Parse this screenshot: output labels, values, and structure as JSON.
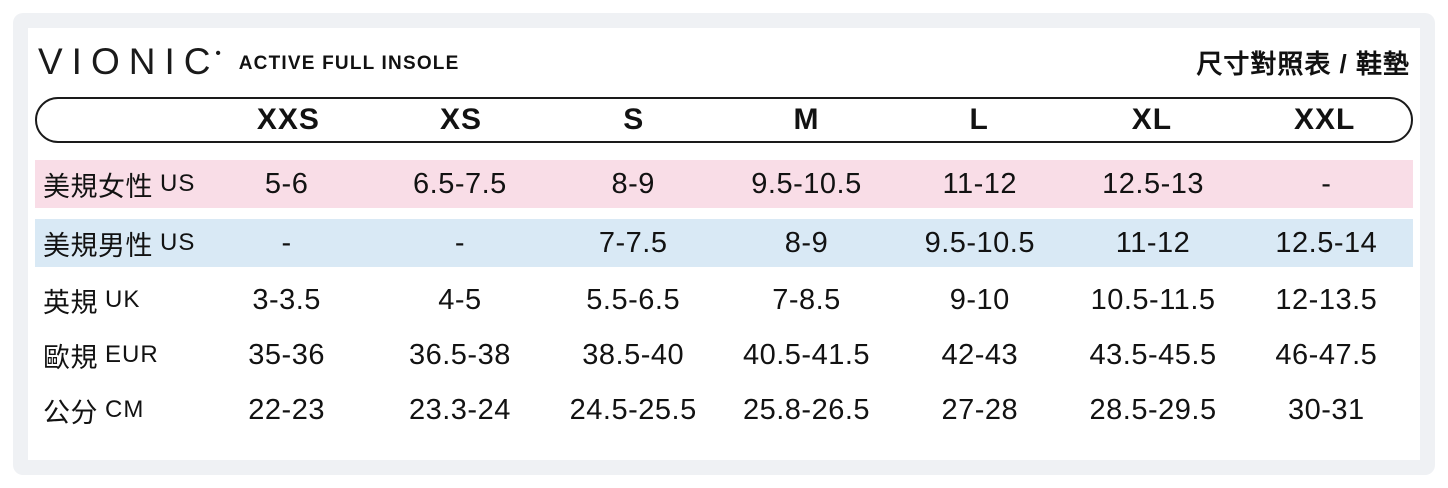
{
  "colors": {
    "frame": "#eff1f4",
    "pill_border": "#1a1a1a",
    "text": "#121212",
    "row_women_bg": "#f9dde7",
    "row_men_bg": "#d9e9f5"
  },
  "header": {
    "brand": "VIONIC",
    "brand_mark": "•",
    "product": "ACTIVE FULL INSOLE",
    "title_right": "尺寸對照表 / 鞋墊"
  },
  "table": {
    "sizes": [
      "XXS",
      "XS",
      "S",
      "M",
      "L",
      "XL",
      "XXL"
    ],
    "rows": [
      {
        "label_zh": "美規女性",
        "label_en": "US",
        "bg": "#f9dde7",
        "values": [
          "5-6",
          "6.5-7.5",
          "8-9",
          "9.5-10.5",
          "11-12",
          "12.5-13",
          "-"
        ]
      },
      {
        "label_zh": "美規男性",
        "label_en": "US",
        "bg": "#d9e9f5",
        "values": [
          "-",
          "-",
          "7-7.5",
          "8-9",
          "9.5-10.5",
          "11-12",
          "12.5-14"
        ]
      },
      {
        "label_zh": "英規",
        "label_en": "UK",
        "bg": "",
        "values": [
          "3-3.5",
          "4-5",
          "5.5-6.5",
          "7-8.5",
          "9-10",
          "10.5-11.5",
          "12-13.5"
        ]
      },
      {
        "label_zh": "歐規",
        "label_en": "EUR",
        "bg": "",
        "values": [
          "35-36",
          "36.5-38",
          "38.5-40",
          "40.5-41.5",
          "42-43",
          "43.5-45.5",
          "46-47.5"
        ]
      },
      {
        "label_zh": "公分",
        "label_en": "CM",
        "bg": "",
        "values": [
          "22-23",
          "23.3-24",
          "24.5-25.5",
          "25.8-26.5",
          "27-28",
          "28.5-29.5",
          "30-31"
        ]
      }
    ]
  },
  "chart_data": {
    "type": "table",
    "title": "VIONIC ACTIVE FULL INSOLE 尺寸對照表 / 鞋墊",
    "columns": [
      "",
      "XXS",
      "XS",
      "S",
      "M",
      "L",
      "XL",
      "XXL"
    ],
    "rows": [
      [
        "美規女性 US",
        "5-6",
        "6.5-7.5",
        "8-9",
        "9.5-10.5",
        "11-12",
        "12.5-13",
        "-"
      ],
      [
        "美規男性 US",
        "-",
        "-",
        "7-7.5",
        "8-9",
        "9.5-10.5",
        "11-12",
        "12.5-14"
      ],
      [
        "英規 UK",
        "3-3.5",
        "4-5",
        "5.5-6.5",
        "7-8.5",
        "9-10",
        "10.5-11.5",
        "12-13.5"
      ],
      [
        "歐規 EUR",
        "35-36",
        "36.5-38",
        "38.5-40",
        "40.5-41.5",
        "42-43",
        "43.5-45.5",
        "46-47.5"
      ],
      [
        "公分 CM",
        "22-23",
        "23.3-24",
        "24.5-25.5",
        "25.8-26.5",
        "27-28",
        "28.5-29.5",
        "30-31"
      ]
    ]
  }
}
